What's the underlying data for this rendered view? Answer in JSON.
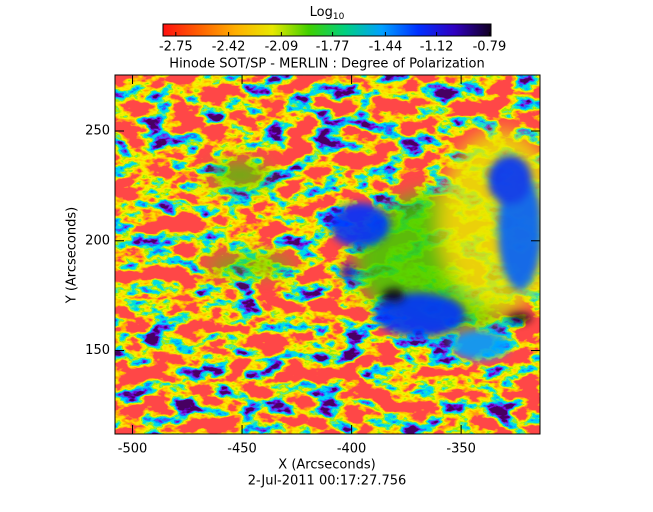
{
  "chart_data": {
    "type": "heatmap",
    "title": "Hinode SOT/SP - MERLIN : Degree of Polarization",
    "subtitle": "2-Jul-2011 00:17:27.756",
    "x_label": "X (Arcseconds)",
    "y_label": "Y (Arcseconds)",
    "xlim": [
      -508,
      -314
    ],
    "xticks": [
      -500,
      -450,
      -400,
      -350
    ],
    "ylim": [
      112,
      275.5
    ],
    "yticks": [
      150,
      200,
      250
    ],
    "colorbar": {
      "label": "Log",
      "label_sub": "10",
      "clim": [
        -2.83,
        -0.78
      ],
      "ticks": [
        -2.75,
        -2.42,
        -2.09,
        -1.77,
        -1.44,
        -1.12,
        -0.79
      ],
      "colormap": [
        "#ff1010",
        "#ff6000",
        "#ffb000",
        "#e8e800",
        "#40d000",
        "#00d080",
        "#00a0ff",
        "#0030ff",
        "#3000c0",
        "#100020"
      ]
    }
  }
}
